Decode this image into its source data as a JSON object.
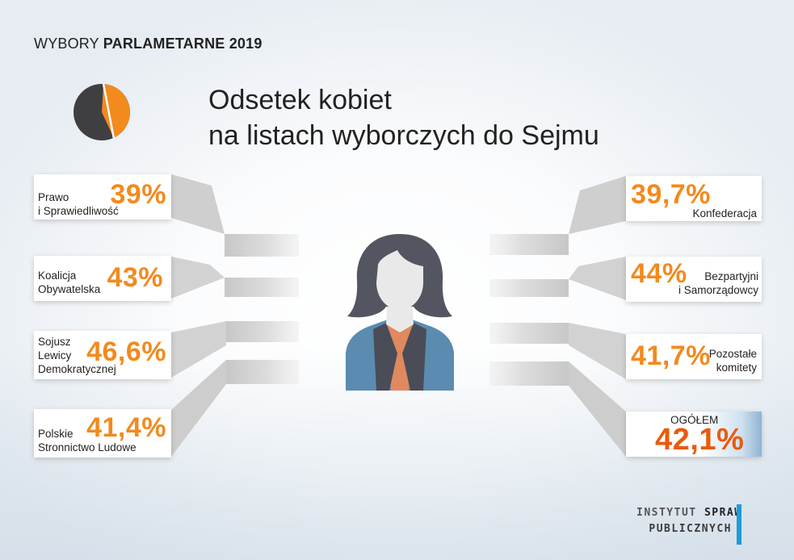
{
  "header": {
    "light": "WYBORY ",
    "bold": "PARLAMETARNE 2019"
  },
  "title": "Odsetek kobiet\nna listach wyborczych do Sejmu",
  "left_items": [
    {
      "name": "Prawo\ni Sprawiedliwość",
      "value": "39%"
    },
    {
      "name": "Koalicja\nObywatelska",
      "value": "43%"
    },
    {
      "name": "Sojusz\nLewicy\nDemokratycznej",
      "value": "46,6%"
    },
    {
      "name": "Polskie\nStronnictwo Ludowe",
      "value": "41,4%"
    }
  ],
  "right_items": [
    {
      "name": "Konfederacja",
      "value": "39,7%"
    },
    {
      "name": "Bezpartyjni\ni Samorządowcy",
      "value": "44%"
    },
    {
      "name": "Pozostałe\nkomitety",
      "value": "41,7%"
    }
  ],
  "total": {
    "label": "OGÓŁEM",
    "value": "42,1%"
  },
  "logo": {
    "line1_a": "INSTYTUT ",
    "line1_b": "SPRAW",
    "line2": "PUBLICZNYCH"
  },
  "colors": {
    "accent": "#f28a1e",
    "total": "#ea5a0c",
    "pie_dark": "#3f3f42",
    "logo_bar": "#1e9bd7"
  },
  "chart_data": {
    "type": "bar",
    "categories": [
      "Prawo i Sprawiedliwość",
      "Koalicja Obywatelska",
      "Sojusz Lewicy Demokratycznej",
      "Polskie Stronnictwo Ludowe",
      "Konfederacja",
      "Bezpartyjni i Samorządowcy",
      "Pozostałe komitety",
      "OGÓŁEM"
    ],
    "values": [
      39,
      43,
      46.6,
      41.4,
      39.7,
      44,
      41.7,
      42.1
    ],
    "title": "Odsetek kobiet na listach wyborczych do Sejmu",
    "ylabel": "",
    "xlabel": "",
    "pie_fraction": 0.421
  }
}
